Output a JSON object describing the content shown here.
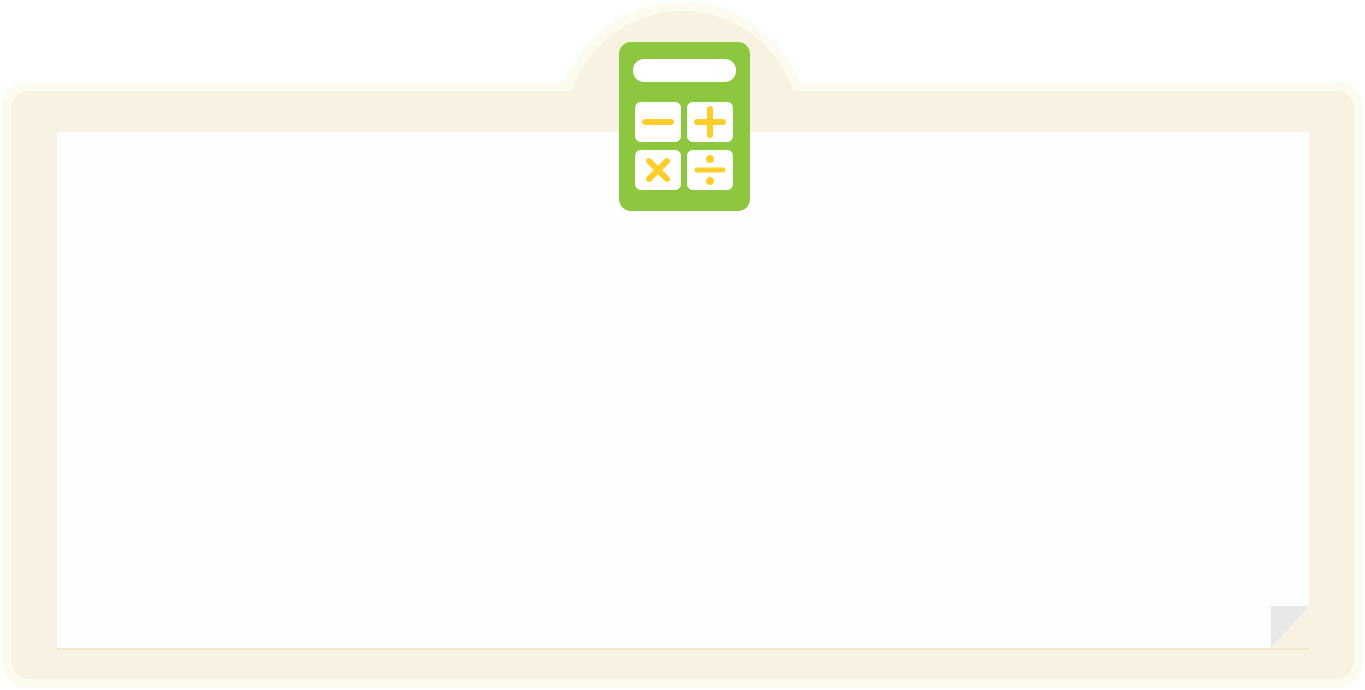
{
  "illustration": {
    "icon": "calculator-icon",
    "buttons": [
      "minus",
      "plus",
      "multiply",
      "divide"
    ],
    "colors": {
      "frame": "#f8f2e2",
      "frame_glow": "#fdfaee",
      "paper": "#fefefe",
      "paper_curl": "#e8e8e8",
      "calculator_body": "#8dc63f",
      "calculator_keys": "#ffffff",
      "calculator_symbols": "#ffcc29"
    }
  }
}
